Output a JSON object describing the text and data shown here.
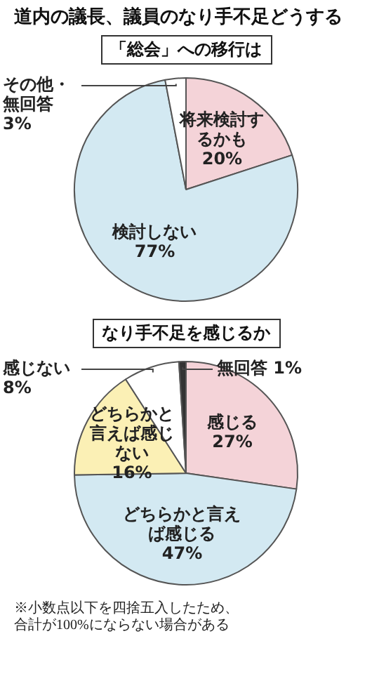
{
  "chart_data": [
    {
      "type": "pie",
      "title": "道内の議長、議員のなり手不足どうする",
      "subtitle": "「総会」への移行は",
      "categories": [
        "将来検討するかも",
        "検討しない",
        "その他・無回答"
      ],
      "values": [
        20,
        77,
        3
      ],
      "value_labels": [
        "20%",
        "77%",
        "3%"
      ],
      "colors": [
        "#f4d3d8",
        "#d3e9f2",
        "#ffffff"
      ],
      "legend": false
    },
    {
      "type": "pie",
      "title": "なり手不足を感じるか",
      "categories": [
        "感じる",
        "どちらかと言えば感じる",
        "どちらかと言えば感じない",
        "感じない",
        "無回答"
      ],
      "values": [
        27,
        47,
        16,
        8,
        1
      ],
      "value_labels": [
        "27%",
        "47%",
        "16%",
        "8%",
        "1%"
      ],
      "colors": [
        "#f4d3d8",
        "#d3e9f2",
        "#fbf0b5",
        "#ffffff",
        "#333333"
      ],
      "legend": false,
      "annotations": [
        "※小数点以下を四捨五入したため、合計が100%にならない場合がある"
      ]
    }
  ]
}
